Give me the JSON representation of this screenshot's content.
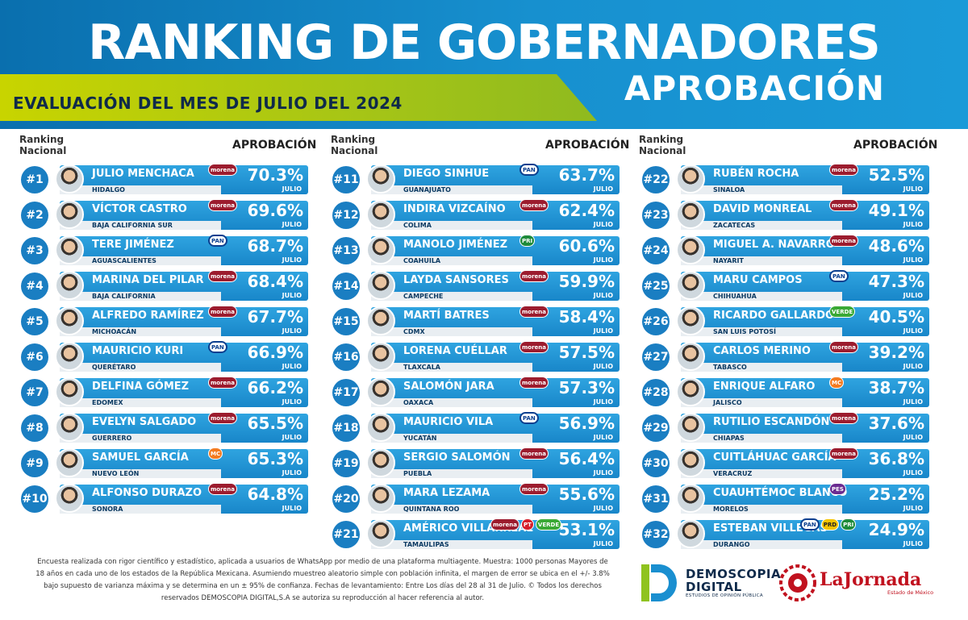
{
  "header": {
    "title": "RANKING DE GOBERNADORES",
    "subtitle": "APROBACIÓN",
    "evaluation": "EVALUACIÓN DEL MES DE JULIO DEL 2024"
  },
  "column_labels": {
    "ranking_line1": "Ranking",
    "ranking_line2": "Nacional",
    "approval": "APROBACIÓN"
  },
  "colors": {
    "header_blue": "#1790cf",
    "bar_blue": "#1886c9",
    "band_green": "#a6c516",
    "morena": "#9c1c2e",
    "pan": "#0b3f8f",
    "pri": "#1f8b3b",
    "pt": "#d51f2b",
    "pvem": "#3aa935",
    "mc": "#f47b20",
    "pes": "#6b2c91"
  },
  "chart_data": {
    "type": "bar",
    "title": "RANKING DE GOBERNADORES",
    "subtitle": "APROBACIÓN",
    "month_label": "JULIO",
    "unit": "%",
    "categories": [
      "JULIO MENCHACA",
      "VÍCTOR CASTRO",
      "TERE JIMÉNEZ",
      "MARINA DEL PILAR",
      "ALFREDO RAMÍREZ",
      "MAURICIO KURI",
      "DELFINA GÓMEZ",
      "EVELYN SALGADO",
      "SAMUEL GARCÍA",
      "ALFONSO DURAZO",
      "DIEGO SINHUE",
      "INDIRA VIZCAÍNO",
      "MANOLO JIMÉNEZ",
      "LAYDA SANSORES",
      "MARTÍ BATRES",
      "LORENA CUÉLLAR",
      "SALOMÓN JARA",
      "MAURICIO VILA",
      "SERGIO SALOMÓN",
      "MARA LEZAMA",
      "AMÉRICO VILLARREAL",
      "RUBÉN ROCHA",
      "DAVID MONREAL",
      "MIGUEL A. NAVARRO",
      "MARU CAMPOS",
      "RICARDO GALLARDO",
      "CARLOS MERINO",
      "ENRIQUE ALFARO",
      "RUTILIO ESCANDÓN",
      "CUITLÁHUAC GARCÍA",
      "CUAUHTÉMOC BLANCO",
      "ESTEBAN VILLEGAS"
    ],
    "values": [
      70.3,
      69.6,
      68.7,
      68.4,
      67.7,
      66.9,
      66.2,
      65.5,
      65.3,
      64.8,
      63.7,
      62.4,
      60.6,
      59.9,
      58.4,
      57.5,
      57.3,
      56.9,
      56.4,
      55.6,
      53.1,
      52.5,
      49.1,
      48.6,
      47.3,
      40.5,
      39.2,
      38.7,
      37.6,
      36.8,
      25.2,
      24.9
    ],
    "rows": [
      {
        "rank": "#1",
        "name": "JULIO MENCHACA",
        "state": "HIDALGO",
        "value": "70.3%",
        "parties": [
          "morena"
        ]
      },
      {
        "rank": "#2",
        "name": "VÍCTOR CASTRO",
        "state": "BAJA CALIFORNIA SUR",
        "value": "69.6%",
        "parties": [
          "morena"
        ]
      },
      {
        "rank": "#3",
        "name": "TERE JIMÉNEZ",
        "state": "AGUASCALIENTES",
        "value": "68.7%",
        "parties": [
          "pan"
        ]
      },
      {
        "rank": "#4",
        "name": "MARINA DEL PILAR",
        "state": "BAJA CALIFORNIA",
        "value": "68.4%",
        "parties": [
          "morena"
        ]
      },
      {
        "rank": "#5",
        "name": "ALFREDO RAMÍREZ",
        "state": "MICHOACÁN",
        "value": "67.7%",
        "parties": [
          "morena"
        ]
      },
      {
        "rank": "#6",
        "name": "MAURICIO KURI",
        "state": "QUERÉTARO",
        "value": "66.9%",
        "parties": [
          "pan"
        ]
      },
      {
        "rank": "#7",
        "name": "DELFINA GÓMEZ",
        "state": "EDOMEX",
        "value": "66.2%",
        "parties": [
          "morena"
        ]
      },
      {
        "rank": "#8",
        "name": "EVELYN SALGADO",
        "state": "GUERRERO",
        "value": "65.5%",
        "parties": [
          "morena"
        ]
      },
      {
        "rank": "#9",
        "name": "SAMUEL GARCÍA",
        "state": "NUEVO LEÓN",
        "value": "65.3%",
        "parties": [
          "mc"
        ]
      },
      {
        "rank": "#10",
        "name": "ALFONSO DURAZO",
        "state": "SONORA",
        "value": "64.8%",
        "parties": [
          "morena"
        ]
      },
      {
        "rank": "#11",
        "name": "DIEGO SINHUE",
        "state": "GUANAJUATO",
        "value": "63.7%",
        "parties": [
          "pan"
        ]
      },
      {
        "rank": "#12",
        "name": "INDIRA VIZCAÍNO",
        "state": "COLIMA",
        "value": "62.4%",
        "parties": [
          "morena"
        ]
      },
      {
        "rank": "#13",
        "name": "MANOLO JIMÉNEZ",
        "state": "COAHUILA",
        "value": "60.6%",
        "parties": [
          "pri"
        ]
      },
      {
        "rank": "#14",
        "name": "LAYDA SANSORES",
        "state": "CAMPECHE",
        "value": "59.9%",
        "parties": [
          "morena"
        ]
      },
      {
        "rank": "#15",
        "name": "MARTÍ BATRES",
        "state": "CDMX",
        "value": "58.4%",
        "parties": [
          "morena"
        ]
      },
      {
        "rank": "#16",
        "name": "LORENA CUÉLLAR",
        "state": "TLAXCALA",
        "value": "57.5%",
        "parties": [
          "morena"
        ]
      },
      {
        "rank": "#17",
        "name": "SALOMÓN JARA",
        "state": "OAXACA",
        "value": "57.3%",
        "parties": [
          "morena"
        ]
      },
      {
        "rank": "#18",
        "name": "MAURICIO VILA",
        "state": "YUCATÁN",
        "value": "56.9%",
        "parties": [
          "pan"
        ]
      },
      {
        "rank": "#19",
        "name": "SERGIO SALOMÓN",
        "state": "PUEBLA",
        "value": "56.4%",
        "parties": [
          "morena"
        ]
      },
      {
        "rank": "#20",
        "name": "MARA LEZAMA",
        "state": "QUINTANA ROO",
        "value": "55.6%",
        "parties": [
          "morena"
        ]
      },
      {
        "rank": "#21",
        "name": "AMÉRICO VILLARREAL",
        "state": "TAMAULIPAS",
        "value": "53.1%",
        "parties": [
          "morena",
          "pt",
          "pvem"
        ]
      },
      {
        "rank": "#22",
        "name": "RUBÉN ROCHA",
        "state": "SINALOA",
        "value": "52.5%",
        "parties": [
          "morena"
        ]
      },
      {
        "rank": "#23",
        "name": "DAVID MONREAL",
        "state": "ZACATECAS",
        "value": "49.1%",
        "parties": [
          "morena"
        ]
      },
      {
        "rank": "#24",
        "name": "MIGUEL A. NAVARRO",
        "state": "NAYARIT",
        "value": "48.6%",
        "parties": [
          "morena"
        ]
      },
      {
        "rank": "#25",
        "name": "MARU CAMPOS",
        "state": "CHIHUAHUA",
        "value": "47.3%",
        "parties": [
          "pan"
        ]
      },
      {
        "rank": "#26",
        "name": "RICARDO GALLARDO",
        "state": "SAN LUIS POTOSÍ",
        "value": "40.5%",
        "parties": [
          "pvem"
        ]
      },
      {
        "rank": "#27",
        "name": "CARLOS MERINO",
        "state": "TABASCO",
        "value": "39.2%",
        "parties": [
          "morena"
        ]
      },
      {
        "rank": "#28",
        "name": "ENRIQUE ALFARO",
        "state": "JALISCO",
        "value": "38.7%",
        "parties": [
          "mc"
        ]
      },
      {
        "rank": "#29",
        "name": "RUTILIO ESCANDÓN",
        "state": "CHIAPAS",
        "value": "37.6%",
        "parties": [
          "morena"
        ]
      },
      {
        "rank": "#30",
        "name": "CUITLÁHUAC GARCÍA",
        "state": "VERACRUZ",
        "value": "36.8%",
        "parties": [
          "morena"
        ]
      },
      {
        "rank": "#31",
        "name": "CUAUHTÉMOC BLANCO",
        "state": "MORELOS",
        "value": "25.2%",
        "parties": [
          "pes"
        ]
      },
      {
        "rank": "#32",
        "name": "ESTEBAN VILLEGAS",
        "state": "DURANGO",
        "value": "24.9%",
        "parties": [
          "pan",
          "prd",
          "pri"
        ]
      }
    ]
  },
  "party_labels": {
    "morena": "morena",
    "pan": "PAN",
    "pri": "PRI",
    "pt": "PT",
    "pvem": "VERDE",
    "mc": "MC",
    "pes": "PES",
    "prd": "PRD"
  },
  "footer": {
    "note": "Encuesta realizada con rigor científico y estadístico, aplicada a usuarios de WhatsApp por medio de una plataforma multiagente. Muestra: 1000 personas Mayores de 18 años en cada uno de los estados de la República Mexicana. Asumiendo muestreo aleatorio simple con población infinita, el margen de error se ubica en el +/- 3.8% bajo supuesto de varianza máxima y se determina en un ± 95% de confianza. Fechas de levantamiento: Entre Los días del 28 al 31 de Julio. © Todos los derechos reservados DEMOSCOPIA DIGITAL,S.A se autoriza su reproducción al hacer referencia al autor.",
    "logo_demoscopia_line1": "DEMOSCOPIA",
    "logo_demoscopia_line2": "DIGITAL",
    "logo_demoscopia_tagline": "ESTUDIOS DE OPINIÓN PÚBLICA",
    "logo_jornada": "LaJornada",
    "logo_jornada_sub": "Estado de México"
  }
}
